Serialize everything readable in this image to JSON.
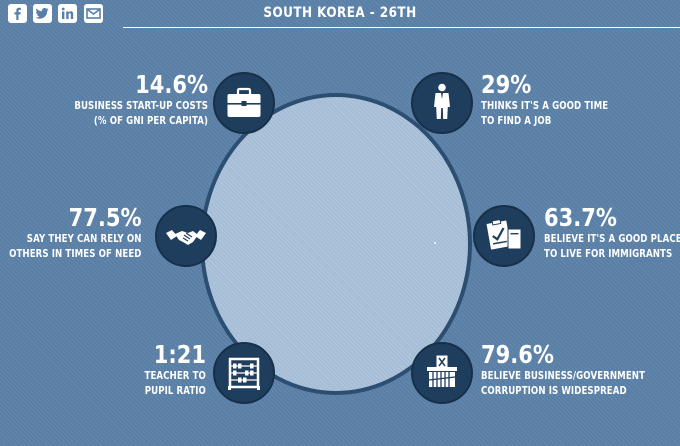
{
  "header": {
    "title": "SOUTH KOREA - 26TH",
    "social": [
      "facebook-icon",
      "twitter-icon",
      "linkedin-icon",
      "email-icon"
    ]
  },
  "stats": [
    {
      "value": "14.6%",
      "line1": "BUSINESS START-UP COSTS",
      "line2": "(% OF GNI PER CAPITA)",
      "icon": "briefcase-icon"
    },
    {
      "value": "29%",
      "line1": "THINKS IT'S A GOOD TIME",
      "line2": "TO FIND A JOB",
      "icon": "businessman-icon"
    },
    {
      "value": "77.5%",
      "line1": "SAY THEY CAN RELY ON",
      "line2": "OTHERS IN TIMES OF NEED",
      "icon": "handshake-icon"
    },
    {
      "value": "63.7%",
      "line1": "BELIEVE IT'S A GOOD PLACE",
      "line2": "TO LIVE FOR IMMIGRANTS",
      "icon": "passport-clipboard-icon"
    },
    {
      "value": "1:21",
      "line1": "TEACHER TO",
      "line2": "PUPIL RATIO",
      "icon": "abacus-icon"
    },
    {
      "value": "79.6%",
      "line1": "BELIEVE BUSINESS/GOVERNMENT",
      "line2": "CORRUPTION IS WIDESPREAD",
      "icon": "ballot-box-icon"
    }
  ],
  "colors": {
    "background": "#5a7fa6",
    "circle": "#a5bdd6",
    "badge": "#1f3d5c"
  }
}
